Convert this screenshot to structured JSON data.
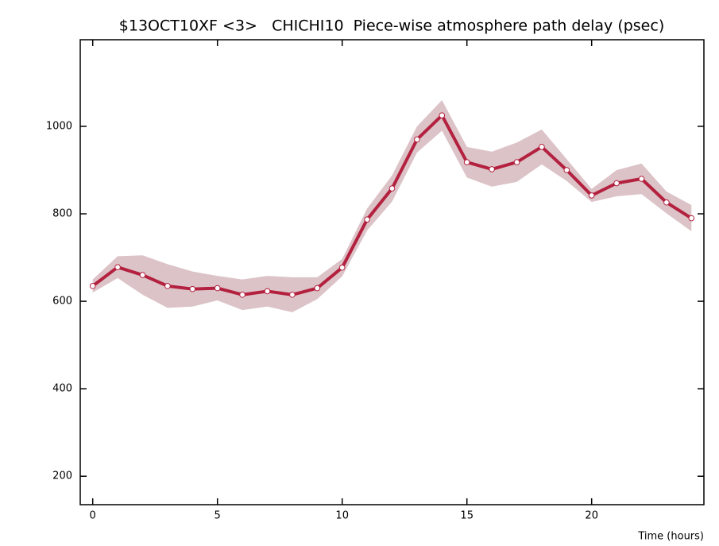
{
  "chart_data": {
    "type": "line",
    "title": "$13OCT10XF <3>   CHICHI10  Piece-wise atmosphere path delay (psec)",
    "x_label": "Time (hours)",
    "x": [
      0,
      1,
      2,
      3,
      4,
      5,
      6,
      7,
      8,
      9,
      10,
      11,
      12,
      13,
      14,
      15,
      16,
      17,
      18,
      19,
      20,
      21,
      22,
      23,
      24
    ],
    "series": [
      {
        "color": "#b3213f",
        "band_color": "#dcc3c8",
        "values": [
          635,
          678,
          660,
          635,
          628,
          630,
          615,
          623,
          615,
          630,
          677,
          787,
          858,
          970,
          1025,
          918,
          902,
          918,
          953,
          900,
          842,
          870,
          880,
          826,
          790
        ],
        "errors": [
          15,
          25,
          45,
          50,
          40,
          28,
          35,
          35,
          40,
          25,
          20,
          25,
          30,
          30,
          35,
          35,
          40,
          45,
          40,
          25,
          15,
          30,
          35,
          25,
          30
        ]
      }
    ],
    "xlim": [
      -0.5,
      24.5
    ],
    "xticks": [
      0,
      5,
      10,
      15,
      20
    ],
    "ylim": [
      135,
      1198
    ],
    "yticks": [
      200,
      400,
      600,
      800,
      1000
    ]
  }
}
